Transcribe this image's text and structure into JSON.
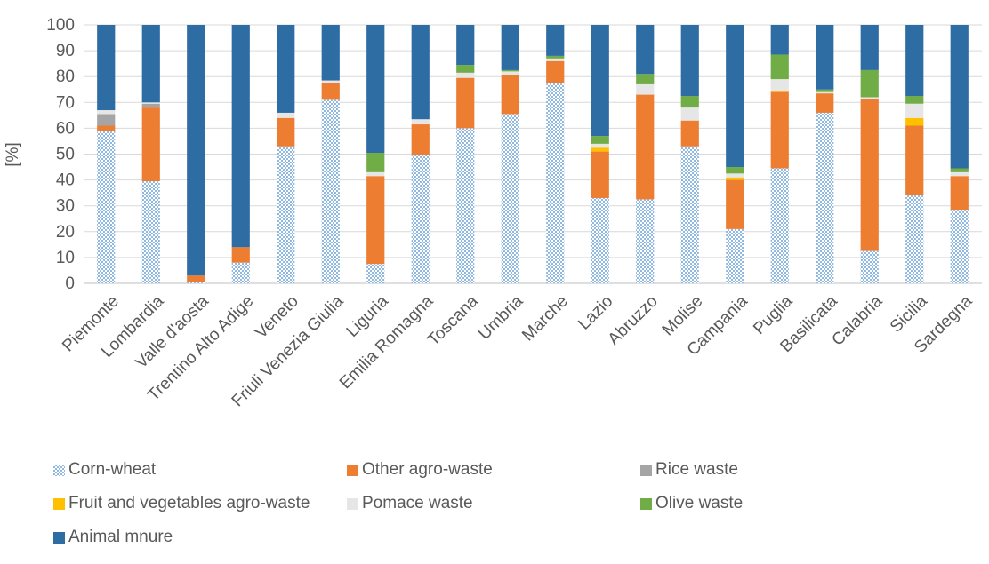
{
  "chart_data": {
    "type": "bar",
    "stacked": true,
    "ylabel": "[%]",
    "xlabel": "",
    "ylim": [
      0,
      100
    ],
    "yticks": [
      0,
      10,
      20,
      30,
      40,
      50,
      60,
      70,
      80,
      90,
      100
    ],
    "grid": "horizontal",
    "legend_position": "bottom",
    "categories": [
      "Piemonte",
      "Lombardia",
      "Valle d'aosta",
      "Trentino Alto Adige",
      "Veneto",
      "Friuli Venezia Giulia",
      "Liguria",
      "Emilia Romagna",
      "Toscana",
      "Umbria",
      "Marche",
      "Lazio",
      "Abruzzo",
      "Molise",
      "Campania",
      "Puglia",
      "Basilicata",
      "Calabria",
      "Sicilia",
      "Sardegna"
    ],
    "series": [
      {
        "name": "Corn-wheat",
        "color": "#9DC3E6",
        "pattern": "checker",
        "values": [
          59,
          39.5,
          0.5,
          8,
          53,
          71,
          7.5,
          49.5,
          60,
          65.5,
          77.5,
          33,
          32.5,
          53,
          21,
          44.5,
          66,
          12.5,
          34,
          28.5
        ]
      },
      {
        "name": "Other agro-waste",
        "color": "#ED7D31",
        "values": [
          2,
          28.5,
          2.5,
          6,
          11,
          6.5,
          34,
          12,
          19.5,
          15,
          8.5,
          18,
          40.5,
          10,
          19,
          29.5,
          7.5,
          59,
          27,
          13
        ]
      },
      {
        "name": "Rice waste",
        "color": "#A5A5A5",
        "values": [
          4.5,
          1.5,
          0,
          0,
          0,
          0,
          0,
          0,
          0,
          0,
          0,
          0,
          0,
          0,
          0,
          0,
          0,
          0,
          0,
          0
        ]
      },
      {
        "name": "Fruit and vegetables agro-waste",
        "color": "#FFC000",
        "values": [
          0,
          0,
          0,
          0,
          0,
          0,
          0,
          0,
          0,
          0,
          0,
          1.5,
          0,
          0,
          1,
          0.5,
          0,
          0,
          3,
          0
        ]
      },
      {
        "name": "Pomace waste",
        "color": "#E7E6E6",
        "values": [
          1.5,
          0.5,
          0,
          0,
          2,
          1,
          1.5,
          2,
          2,
          1.5,
          1,
          1.5,
          4,
          5,
          1.5,
          4.5,
          0.5,
          0.5,
          5.5,
          1.5
        ]
      },
      {
        "name": "Olive waste",
        "color": "#70AD47",
        "values": [
          0,
          0,
          0,
          0,
          0,
          0,
          7.5,
          0,
          3,
          0.5,
          1,
          3,
          4,
          4.5,
          2.5,
          9.5,
          1,
          10.5,
          3,
          1.5
        ]
      },
      {
        "name": "Animal mnure",
        "color": "#2E6DA4",
        "values": [
          33,
          30,
          97,
          86,
          34,
          21.5,
          49.5,
          36.5,
          15.5,
          17.5,
          12,
          43,
          19,
          27.5,
          55,
          11.5,
          25,
          17.5,
          27.5,
          55.5
        ]
      }
    ]
  }
}
